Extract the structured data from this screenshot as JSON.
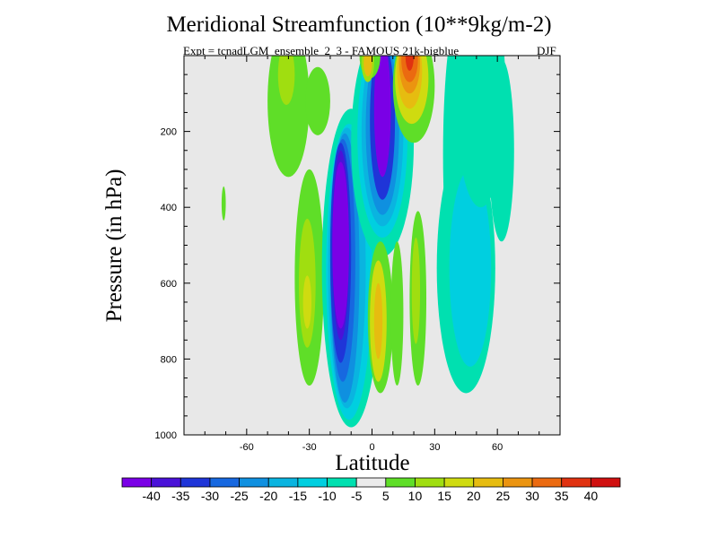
{
  "chart_data": {
    "type": "heatmap",
    "title": "Meridional Streamfunction (10**9kg/m-2)",
    "subtitle": "Expt = tcnadLGM_ensemble_2_3 - FAMOUS 21k-bigblue",
    "season": "DJF",
    "xlabel": "Latitude",
    "ylabel": "Pressure (in hPa)",
    "xlim": [
      -90,
      90
    ],
    "ylim": [
      1000,
      0
    ],
    "x_ticks": [
      -60,
      -30,
      0,
      30,
      60
    ],
    "y_ticks": [
      200,
      400,
      600,
      800,
      1000
    ],
    "colorbar": {
      "boundaries": [
        "-40",
        "-35",
        "-30",
        "-25",
        "-20",
        "-15",
        "-10",
        "-5",
        "5",
        "10",
        "15",
        "20",
        "25",
        "30",
        "35",
        "40"
      ],
      "colors": [
        "#7a00e6",
        "#4a12d8",
        "#1f35d8",
        "#1768e0",
        "#0f90e0",
        "#0ab4e0",
        "#00cfe0",
        "#00e0b0",
        "#ebebeb",
        "#5fde28",
        "#a0de10",
        "#cfdb10",
        "#e6bc10",
        "#eb9410",
        "#eb6a10",
        "#e03210",
        "#d01010"
      ]
    },
    "features": [
      {
        "name": "southern-hadley-cell",
        "sign": "negative",
        "lat_range": [
          -20,
          -5
        ],
        "p_range": [
          150,
          970
        ],
        "min_value": -40
      },
      {
        "name": "equatorial-upper-cell",
        "sign": "negative",
        "lat_range": [
          0,
          12
        ],
        "p_range": [
          0,
          450
        ],
        "min_value": -40
      },
      {
        "name": "northern-positive-cell",
        "sign": "positive",
        "lat_range": [
          14,
          28
        ],
        "p_range": [
          0,
          250
        ],
        "max_value": 35
      },
      {
        "name": "southern-ferrel-band",
        "sign": "positive",
        "lat_range": [
          -35,
          -25
        ],
        "p_range": [
          300,
          870
        ],
        "max_value": 15
      },
      {
        "name": "northern-midlat-band",
        "sign": "negative",
        "lat_range": [
          35,
          60
        ],
        "p_range": [
          0,
          880
        ],
        "min_value": -15
      }
    ]
  }
}
